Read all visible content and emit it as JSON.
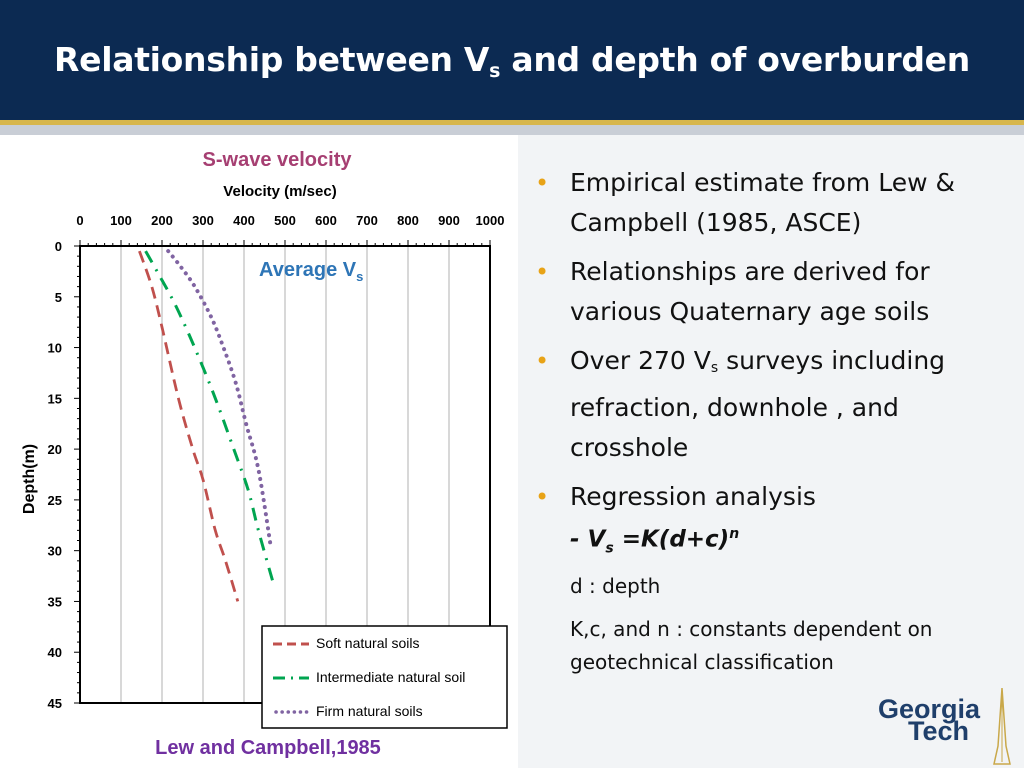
{
  "slide": {
    "title_main": "Relationship between V",
    "title_sub": "s",
    "title_rest": " and depth of overburden",
    "bullets": [
      {
        "text": "Empirical estimate from Lew & Campbell (1985, ASCE)"
      },
      {
        "text": "Relationships are derived for various Quaternary age soils"
      },
      {
        "pre": "Over 270 V",
        "sub": "s",
        "post": " surveys including refraction, downhole , and crosshole"
      },
      {
        "text": "Regression analysis"
      }
    ],
    "formula": {
      "pre": "- V",
      "sub": "s",
      "mid": " =K(d+c)",
      "sup": "n"
    },
    "note_depth": "d : depth",
    "note_constants": "K,c, and n : constants dependent on geotechnical classification",
    "logo": {
      "line1": "Georgia",
      "line2": "Tech"
    }
  },
  "colors": {
    "header_bg": "#0c2a52",
    "accent_gold": "#d7b64c",
    "bullet": "#e8a317",
    "soft": "#c0504d",
    "intermediate": "#00a550",
    "firm": "#8064a2",
    "chart_title": "#a63f72",
    "average_label": "#2e75b6",
    "credit": "#7030a0"
  },
  "chart_data": {
    "type": "line",
    "title": "S-wave velocity",
    "xlabel": "Velocity (m/sec)",
    "ylabel": "Depth(m)",
    "xlim": [
      0,
      1000
    ],
    "ylim": [
      0,
      45
    ],
    "y_inverted": true,
    "x_ticks": [
      0,
      100,
      200,
      300,
      400,
      500,
      600,
      700,
      800,
      900,
      1000
    ],
    "y_ticks": [
      0,
      5,
      10,
      15,
      20,
      25,
      30,
      35,
      40,
      45
    ],
    "x_axis_position": "top",
    "grid": "vertical",
    "annotation": {
      "pre": "Average V",
      "sub": "s"
    },
    "legend_position": "bottom-right",
    "credit": "Lew and Campbell,1985",
    "series": [
      {
        "name": "Soft natural soils",
        "style": "dashed",
        "color": "#c0504d",
        "velocity": [
          145,
          175,
          200,
          240,
          275,
          300,
          330,
          355,
          385
        ],
        "depth": [
          0.5,
          4,
          8,
          15,
          20,
          23,
          28,
          31,
          35
        ]
      },
      {
        "name": "Intermediate natural soil",
        "style": "dash-dot",
        "color": "#00a550",
        "velocity": [
          160,
          195,
          235,
          285,
          330,
          375,
          410,
          435,
          470
        ],
        "depth": [
          0.5,
          3,
          6,
          10.5,
          15,
          20,
          24,
          28,
          33
        ]
      },
      {
        "name": "Firm natural soils",
        "style": "dotted",
        "color": "#8064a2",
        "velocity": [
          215,
          245,
          280,
          320,
          350,
          380,
          405,
          435,
          465
        ],
        "depth": [
          0.5,
          2,
          4,
          7,
          10,
          13.5,
          17.5,
          22,
          29.5
        ]
      }
    ]
  }
}
